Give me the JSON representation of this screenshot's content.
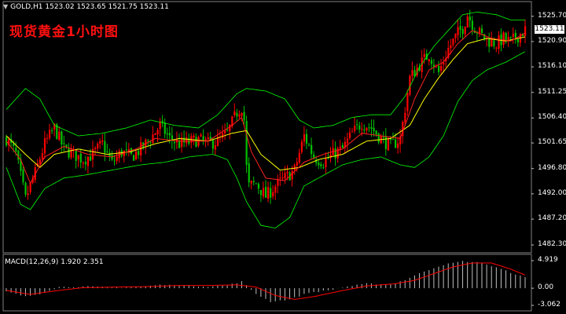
{
  "header": {
    "symbol_title": "GOLD,H1  1523.02 1523.65 1521.75 1523.11",
    "chart_label": "现货黄金1小时图"
  },
  "colors": {
    "background": "#000000",
    "bull_candle": "#ff0000",
    "bear_candle": "#00c000",
    "bollinger": "#00ff00",
    "ma_fast": "#ff2020",
    "ma_slow": "#ffff00",
    "macd_hist": "#c0c0c0",
    "macd_signal": "#ff0000"
  },
  "chart_data": [
    {
      "type": "candlestick",
      "title": "",
      "y_axis_ticks": [
        "1525.70",
        "1520.90",
        "1516.10",
        "1511.25",
        "1506.40",
        "1501.65",
        "1496.80",
        "1492.00",
        "1487.20",
        "1482.30"
      ],
      "ylim": [
        1482.3,
        1527.0
      ],
      "current_price": "1523.11",
      "close_path": [
        [
          0,
          1502.5
        ],
        [
          4,
          1499.5
        ],
        [
          8,
          1491.0
        ],
        [
          12,
          1496.0
        ],
        [
          16,
          1501.5
        ],
        [
          20,
          1504.5
        ],
        [
          24,
          1500.5
        ],
        [
          28,
          1499.5
        ],
        [
          32,
          1498.5
        ],
        [
          36,
          1499.5
        ],
        [
          40,
          1501.5
        ],
        [
          44,
          1497.8
        ],
        [
          48,
          1500.0
        ],
        [
          52,
          1499.0
        ],
        [
          56,
          1500.5
        ],
        [
          60,
          1502.5
        ],
        [
          64,
          1505.0
        ],
        [
          68,
          1502.5
        ],
        [
          72,
          1501.5
        ],
        [
          76,
          1501.8
        ],
        [
          80,
          1502.3
        ],
        [
          84,
          1501.5
        ],
        [
          88,
          1502.0
        ],
        [
          92,
          1503.5
        ],
        [
          96,
          1507.5
        ],
        [
          98,
          1508.5
        ],
        [
          99,
          1506.0
        ],
        [
          100,
          1497.0
        ],
        [
          101,
          1493.5
        ],
        [
          104,
          1494.0
        ],
        [
          108,
          1491.5
        ],
        [
          112,
          1493.5
        ],
        [
          116,
          1495.0
        ],
        [
          120,
          1496.5
        ],
        [
          124,
          1503.0
        ],
        [
          128,
          1499.0
        ],
        [
          132,
          1498.0
        ],
        [
          136,
          1499.5
        ],
        [
          140,
          1500.5
        ],
        [
          144,
          1503.5
        ],
        [
          148,
          1505.5
        ],
        [
          152,
          1504.5
        ],
        [
          156,
          1502.5
        ],
        [
          160,
          1501.0
        ],
        [
          164,
          1502.5
        ],
        [
          168,
          1514.0
        ],
        [
          172,
          1516.5
        ],
        [
          176,
          1518.5
        ],
        [
          180,
          1515.0
        ],
        [
          184,
          1519.5
        ],
        [
          188,
          1522.5
        ],
        [
          190,
          1523.5
        ],
        [
          192,
          1526.0
        ],
        [
          195,
          1523.5
        ],
        [
          198,
          1522.0
        ],
        [
          201,
          1521.0
        ],
        [
          204,
          1520.5
        ],
        [
          207,
          1521.5
        ],
        [
          210,
          1520.8
        ],
        [
          213,
          1522.0
        ],
        [
          216,
          1523.11
        ]
      ],
      "bollinger_upper": [
        [
          0,
          1508.0
        ],
        [
          8,
          1512.0
        ],
        [
          14,
          1510.0
        ],
        [
          20,
          1505.0
        ],
        [
          30,
          1503.0
        ],
        [
          40,
          1503.5
        ],
        [
          50,
          1504.5
        ],
        [
          60,
          1506.0
        ],
        [
          70,
          1505.0
        ],
        [
          80,
          1504.5
        ],
        [
          88,
          1507.0
        ],
        [
          96,
          1511.0
        ],
        [
          100,
          1512.0
        ],
        [
          108,
          1511.5
        ],
        [
          116,
          1510.0
        ],
        [
          122,
          1506.0
        ],
        [
          128,
          1504.5
        ],
        [
          136,
          1505.0
        ],
        [
          144,
          1506.5
        ],
        [
          152,
          1507.0
        ],
        [
          160,
          1507.0
        ],
        [
          166,
          1510.5
        ],
        [
          172,
          1516.0
        ],
        [
          178,
          1520.0
        ],
        [
          184,
          1523.0
        ],
        [
          190,
          1526.0
        ],
        [
          196,
          1526.5
        ],
        [
          204,
          1526.0
        ],
        [
          210,
          1525.0
        ],
        [
          216,
          1525.0
        ]
      ],
      "bollinger_lower": [
        [
          0,
          1497.0
        ],
        [
          6,
          1490.0
        ],
        [
          10,
          1489.0
        ],
        [
          16,
          1493.0
        ],
        [
          24,
          1495.0
        ],
        [
          32,
          1495.5
        ],
        [
          44,
          1496.5
        ],
        [
          56,
          1497.5
        ],
        [
          66,
          1498.0
        ],
        [
          76,
          1499.0
        ],
        [
          86,
          1499.5
        ],
        [
          92,
          1498.5
        ],
        [
          96,
          1495.0
        ],
        [
          100,
          1490.5
        ],
        [
          106,
          1486.0
        ],
        [
          112,
          1485.5
        ],
        [
          118,
          1487.5
        ],
        [
          124,
          1493.5
        ],
        [
          132,
          1495.5
        ],
        [
          140,
          1497.5
        ],
        [
          148,
          1498.5
        ],
        [
          156,
          1499.0
        ],
        [
          164,
          1497.5
        ],
        [
          170,
          1497.0
        ],
        [
          176,
          1499.0
        ],
        [
          182,
          1503.0
        ],
        [
          188,
          1509.5
        ],
        [
          194,
          1513.5
        ],
        [
          200,
          1515.5
        ],
        [
          208,
          1517.0
        ],
        [
          216,
          1519.0
        ]
      ],
      "ma_fast": [
        [
          0,
          1502.0
        ],
        [
          6,
          1498.5
        ],
        [
          10,
          1494.0
        ],
        [
          16,
          1499.0
        ],
        [
          24,
          1501.0
        ],
        [
          34,
          1499.5
        ],
        [
          44,
          1499.0
        ],
        [
          54,
          1500.5
        ],
        [
          62,
          1502.5
        ],
        [
          72,
          1502.0
        ],
        [
          84,
          1502.0
        ],
        [
          94,
          1505.0
        ],
        [
          98,
          1506.5
        ],
        [
          102,
          1500.0
        ],
        [
          108,
          1495.0
        ],
        [
          116,
          1494.5
        ],
        [
          124,
          1498.0
        ],
        [
          132,
          1499.5
        ],
        [
          140,
          1500.5
        ],
        [
          148,
          1503.5
        ],
        [
          156,
          1503.0
        ],
        [
          164,
          1502.5
        ],
        [
          170,
          1510.0
        ],
        [
          176,
          1515.5
        ],
        [
          182,
          1517.0
        ],
        [
          188,
          1520.5
        ],
        [
          194,
          1523.0
        ],
        [
          202,
          1521.5
        ],
        [
          210,
          1521.0
        ],
        [
          216,
          1522.5
        ]
      ],
      "ma_slow": [
        [
          0,
          1503.0
        ],
        [
          8,
          1499.5
        ],
        [
          14,
          1497.0
        ],
        [
          20,
          1499.5
        ],
        [
          30,
          1500.5
        ],
        [
          42,
          1499.5
        ],
        [
          52,
          1500.0
        ],
        [
          62,
          1501.5
        ],
        [
          72,
          1502.5
        ],
        [
          84,
          1502.0
        ],
        [
          94,
          1503.5
        ],
        [
          100,
          1504.0
        ],
        [
          106,
          1499.5
        ],
        [
          114,
          1496.5
        ],
        [
          122,
          1497.0
        ],
        [
          130,
          1498.5
        ],
        [
          140,
          1499.5
        ],
        [
          150,
          1502.0
        ],
        [
          160,
          1502.5
        ],
        [
          168,
          1505.0
        ],
        [
          174,
          1510.0
        ],
        [
          180,
          1514.0
        ],
        [
          186,
          1517.5
        ],
        [
          192,
          1520.5
        ],
        [
          200,
          1521.5
        ],
        [
          208,
          1521.0
        ],
        [
          216,
          1521.8
        ]
      ]
    },
    {
      "type": "bar",
      "title": "MACD(12,26,9) 1.920 2.351",
      "y_axis_ticks": [
        "4.919",
        "0.00",
        "-3.062"
      ],
      "ylim": [
        -3.062,
        4.919
      ],
      "histogram": [
        [
          0,
          -0.6
        ],
        [
          8,
          -1.5
        ],
        [
          14,
          -1.0
        ],
        [
          22,
          0.2
        ],
        [
          34,
          0.3
        ],
        [
          44,
          0.1
        ],
        [
          54,
          0.2
        ],
        [
          64,
          0.6
        ],
        [
          74,
          0.5
        ],
        [
          84,
          0.3
        ],
        [
          92,
          0.5
        ],
        [
          98,
          1.2
        ],
        [
          104,
          -1.0
        ],
        [
          110,
          -2.4
        ],
        [
          118,
          -2.0
        ],
        [
          126,
          -0.8
        ],
        [
          134,
          -0.4
        ],
        [
          142,
          0.3
        ],
        [
          150,
          0.8
        ],
        [
          160,
          0.7
        ],
        [
          166,
          1.5
        ],
        [
          174,
          3.0
        ],
        [
          182,
          4.2
        ],
        [
          190,
          4.8
        ],
        [
          198,
          4.5
        ],
        [
          206,
          3.4
        ],
        [
          216,
          1.9
        ]
      ],
      "signal": [
        [
          0,
          -0.4
        ],
        [
          10,
          -1.1
        ],
        [
          20,
          -0.5
        ],
        [
          32,
          0.1
        ],
        [
          46,
          0.2
        ],
        [
          60,
          0.3
        ],
        [
          72,
          0.5
        ],
        [
          86,
          0.5
        ],
        [
          96,
          0.6
        ],
        [
          104,
          0.2
        ],
        [
          112,
          -1.3
        ],
        [
          120,
          -2.0
        ],
        [
          128,
          -1.5
        ],
        [
          138,
          -0.6
        ],
        [
          150,
          0.4
        ],
        [
          162,
          0.8
        ],
        [
          170,
          1.4
        ],
        [
          178,
          2.6
        ],
        [
          186,
          3.8
        ],
        [
          194,
          4.5
        ],
        [
          202,
          4.5
        ],
        [
          210,
          3.4
        ],
        [
          216,
          2.351
        ]
      ]
    }
  ]
}
